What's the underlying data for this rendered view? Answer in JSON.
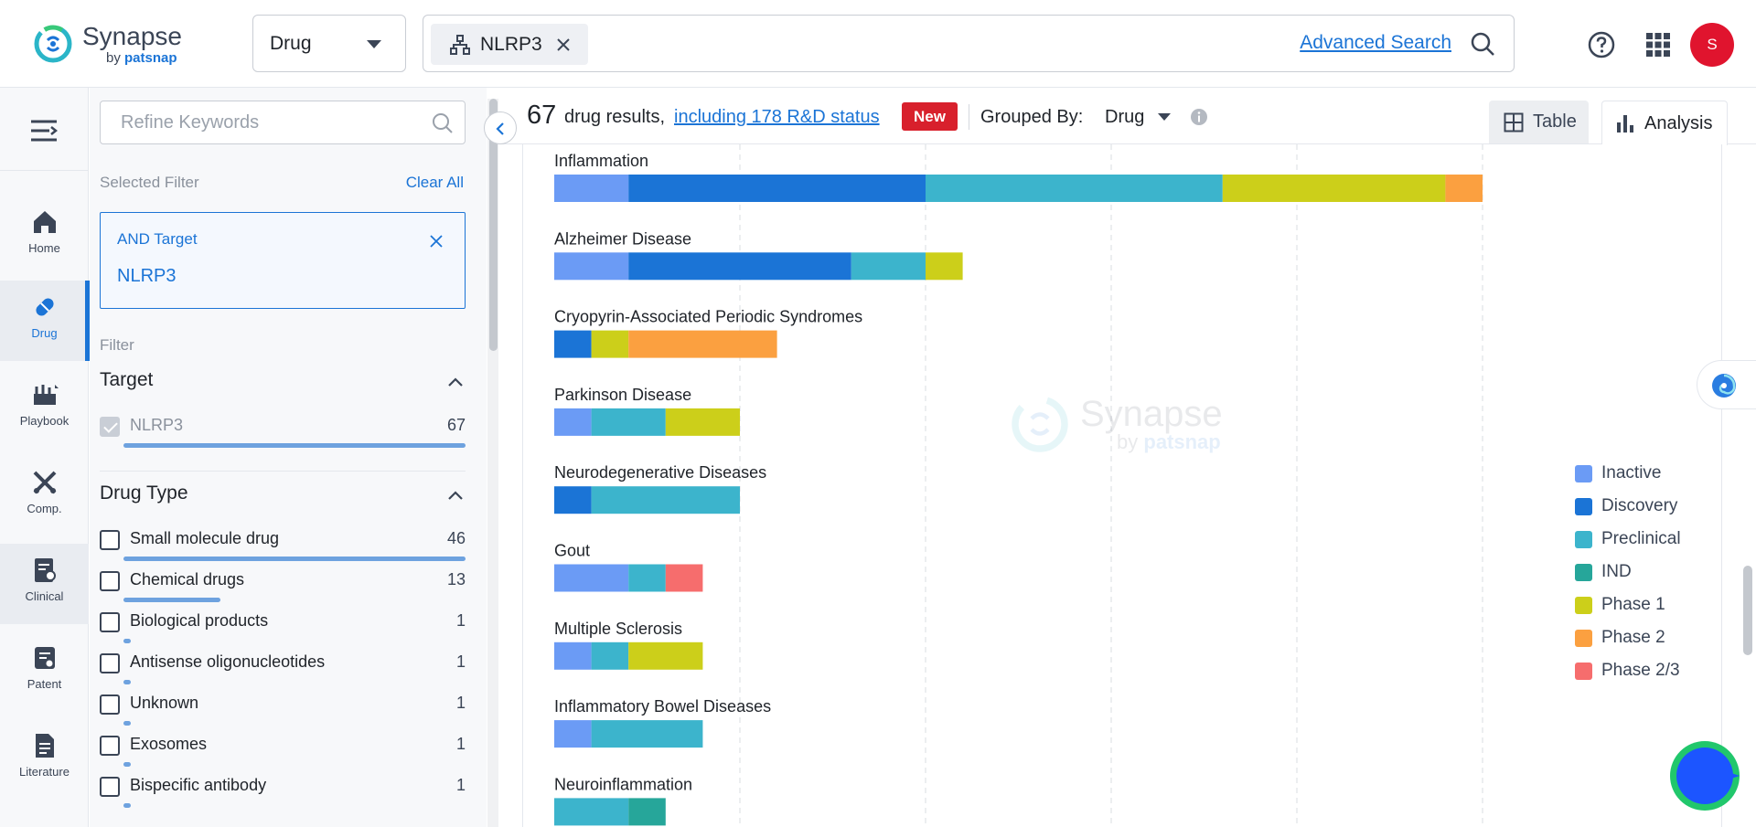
{
  "header": {
    "logo_name": "Synapse",
    "logo_by": "by",
    "logo_brand": "patsnap",
    "type_select": "Drug",
    "search_chip": "NLRP3",
    "advanced_search": "Advanced Search",
    "avatar_initial": "S"
  },
  "nav": {
    "items": [
      {
        "label": "Home",
        "icon": "home-icon"
      },
      {
        "label": "Drug",
        "icon": "pill-icon"
      },
      {
        "label": "Playbook",
        "icon": "playbook-icon"
      },
      {
        "label": "Comp.",
        "icon": "competition-icon"
      },
      {
        "label": "Clinical",
        "icon": "clinical-icon"
      },
      {
        "label": "Patent",
        "icon": "patent-icon"
      },
      {
        "label": "Literature",
        "icon": "literature-icon"
      }
    ]
  },
  "filter": {
    "refine_placeholder": "Refine Keywords",
    "selected_filter_label": "Selected Filter",
    "clear_all": "Clear All",
    "selected": {
      "condition": "AND Target",
      "value": "NLRP3"
    },
    "filter_label": "Filter",
    "target_group": {
      "title": "Target",
      "items": [
        {
          "name": "NLRP3",
          "count": "67",
          "checked": true,
          "fraction": 1.0
        }
      ]
    },
    "drug_type_group": {
      "title": "Drug Type",
      "items": [
        {
          "name": "Small molecule drug",
          "count": "46",
          "fraction": 1.0
        },
        {
          "name": "Chemical drugs",
          "count": "13",
          "fraction": 0.283
        },
        {
          "name": "Biological products",
          "count": "1",
          "fraction": 0.022
        },
        {
          "name": "Antisense oligonucleotides",
          "count": "1",
          "fraction": 0.022
        },
        {
          "name": "Unknown",
          "count": "1",
          "fraction": 0.022
        },
        {
          "name": "Exosomes",
          "count": "1",
          "fraction": 0.022
        },
        {
          "name": "Bispecific antibody",
          "count": "1",
          "fraction": 0.022
        }
      ]
    }
  },
  "results": {
    "count": "67",
    "text": "drug results,",
    "link": "including 178 R&D status",
    "badge": "New",
    "grouped_by_label": "Grouped By:",
    "grouped_by_value": "Drug",
    "view_table": "Table",
    "view_analysis": "Analysis"
  },
  "watermark": {
    "name": "Synapse",
    "by": "by",
    "brand": "patsnap"
  },
  "colors": {
    "Inactive": "#6b9bf5",
    "Discovery": "#1b74d6",
    "Preclinical": "#3cb4cc",
    "IND": "#26a69a",
    "Phase 1": "#cccf1a",
    "Phase 2": "#fba040",
    "Phase 2/3": "#f66d6d"
  },
  "chart_data": {
    "type": "bar",
    "orientation": "horizontal",
    "stacked": true,
    "grid": true,
    "legend_position": "right",
    "legend": [
      "Inactive",
      "Discovery",
      "Preclinical",
      "IND",
      "Phase 1",
      "Phase 2",
      "Phase 2/3"
    ],
    "categories": [
      {
        "name": "Inflammation",
        "segments": [
          [
            "Inactive",
            2
          ],
          [
            "Discovery",
            8
          ],
          [
            "Preclinical",
            8
          ],
          [
            "Phase 1",
            6
          ],
          [
            "Phase 2",
            1
          ]
        ]
      },
      {
        "name": "Alzheimer Disease",
        "segments": [
          [
            "Inactive",
            2
          ],
          [
            "Discovery",
            6
          ],
          [
            "Preclinical",
            2
          ],
          [
            "Phase 1",
            1
          ]
        ]
      },
      {
        "name": "Cryopyrin-Associated Periodic Syndromes",
        "segments": [
          [
            "Discovery",
            1
          ],
          [
            "Phase 1",
            1
          ],
          [
            "Phase 2",
            4
          ]
        ]
      },
      {
        "name": "Parkinson Disease",
        "segments": [
          [
            "Inactive",
            1
          ],
          [
            "Preclinical",
            2
          ],
          [
            "Phase 1",
            2
          ]
        ]
      },
      {
        "name": "Neurodegenerative Diseases",
        "segments": [
          [
            "Discovery",
            1
          ],
          [
            "Preclinical",
            4
          ]
        ]
      },
      {
        "name": "Gout",
        "segments": [
          [
            "Inactive",
            2
          ],
          [
            "Preclinical",
            1
          ],
          [
            "Phase 2/3",
            1
          ]
        ]
      },
      {
        "name": "Multiple Sclerosis",
        "segments": [
          [
            "Inactive",
            1
          ],
          [
            "Preclinical",
            1
          ],
          [
            "Phase 1",
            2
          ]
        ]
      },
      {
        "name": "Inflammatory Bowel Diseases",
        "segments": [
          [
            "Inactive",
            1
          ],
          [
            "Preclinical",
            3
          ]
        ]
      },
      {
        "name": "Neuroinflammation",
        "segments": [
          [
            "Preclinical",
            2
          ],
          [
            "IND",
            1
          ]
        ]
      }
    ],
    "x_range": [
      0,
      25
    ]
  }
}
